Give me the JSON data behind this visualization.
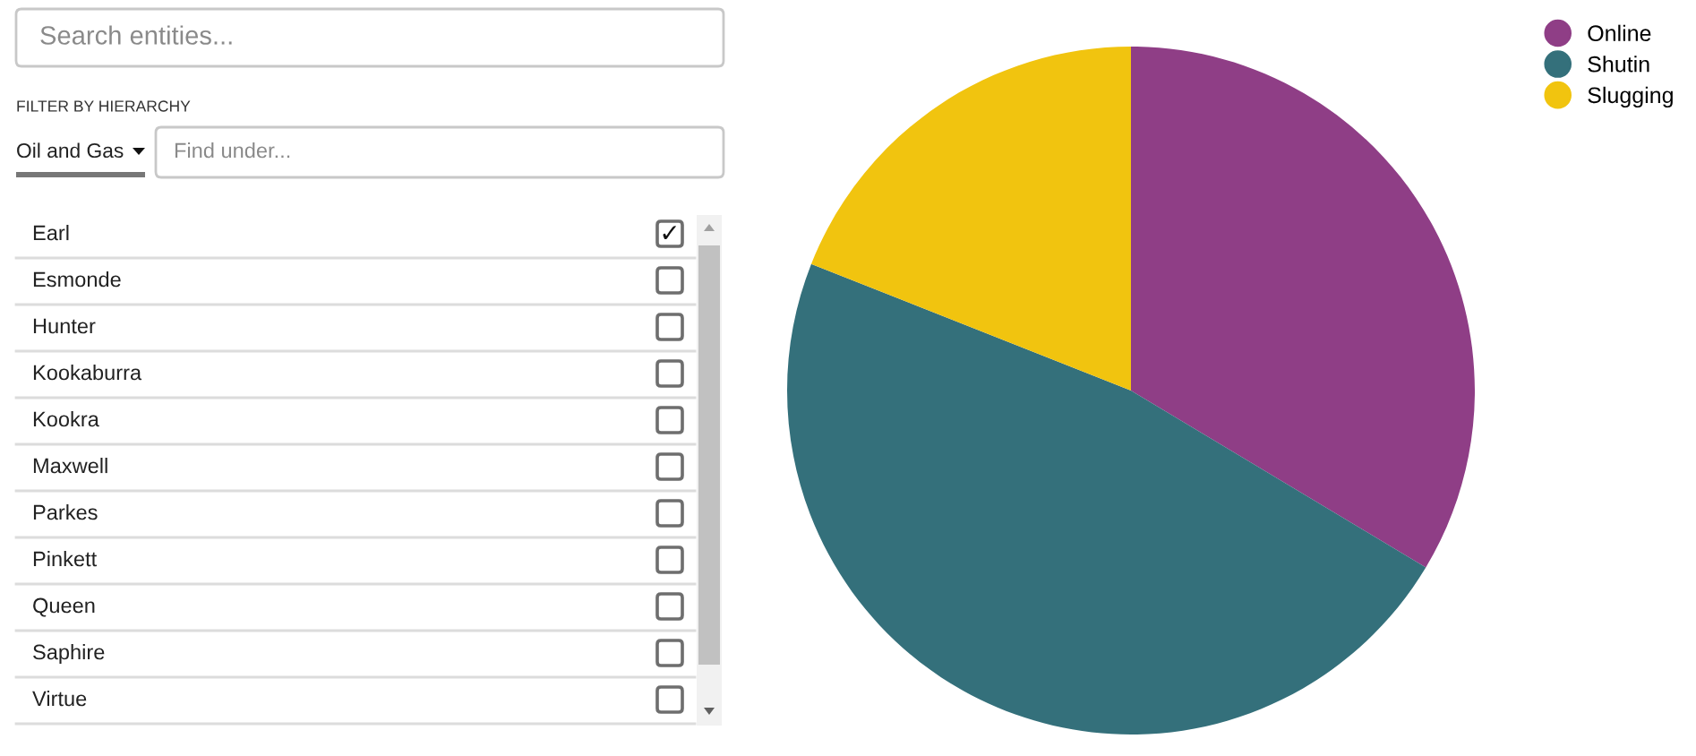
{
  "chart_data": [
    {
      "type": "other",
      "annotations": [
        "Search entities...",
        "FILTER BY HIERARCHY",
        "Oil and Gas",
        "Find under..."
      ],
      "categories": [
        "Earl",
        "Esmonde",
        "Hunter",
        "Kookaburra",
        "Kookra",
        "Maxwell",
        "Parkes",
        "Pinkett",
        "Queen",
        "Saphire",
        "Virtue"
      ],
      "value_labels": [
        "✓",
        null,
        null,
        null,
        null,
        null,
        null,
        null,
        null,
        null,
        null
      ]
    },
    {
      "type": "pie",
      "categories": [
        "Online",
        "Shutin",
        "Slugging"
      ],
      "values": [
        33.6,
        47.4,
        19.0
      ],
      "colors": [
        "#8f3e86",
        "#34707b",
        "#f1c40f"
      ],
      "legend": "top right"
    }
  ]
}
